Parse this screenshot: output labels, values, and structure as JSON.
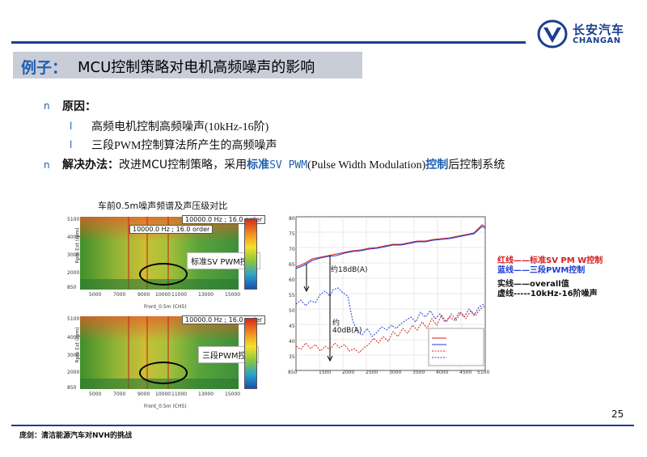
{
  "brand": {
    "cn": "长安汽车",
    "en": "CHANGAN",
    "color": "#1a3f8f"
  },
  "title": {
    "prefix": "例子：",
    "text": "MCU控制策略对电机高频噪声的影响"
  },
  "reason": {
    "label": "原因：",
    "items": [
      "高频电机控制高频噪声(10kHz-16阶)",
      "三段PWM控制算法所产生的高频噪声"
    ]
  },
  "solution": {
    "label": "解决办法：",
    "text_before": "改进MCU控制策略，采用",
    "highlight1": "标准",
    "highlight2": "SV PWM",
    "paren": "(Pulse Width Modulation)",
    "highlight3": "控制",
    "text_after": "后控制系统"
  },
  "figure_left": {
    "caption": "车前0.5m噪声频谱及声压级对比",
    "top_label": "标准SV PWM控制",
    "bottom_label": "三段PWM控制",
    "top_tags": [
      "10000.0 Hz ; 16.0 order",
      "10000.0 Hz ; 16.0 order"
    ],
    "bottom_tags": [
      "10000.0 Hz ; 16.0 order"
    ],
    "y_ticks": [
      "5100",
      "4000",
      "3000",
      "2000",
      "1000",
      "850"
    ],
    "x_ticks": [
      "5000",
      "7000",
      "9000",
      "10000",
      "11000",
      "13000",
      "15000"
    ],
    "x_label": "Front_0.5m (CH5)",
    "y_label": "Rpm Ext (rpm)",
    "cbar_ticks": [
      "70",
      "50",
      "40",
      "30",
      "20",
      "10"
    ]
  },
  "figure_right": {
    "annotation1": "约18dB(A)",
    "annotation2_l1": "约",
    "annotation2_l2": "40dB(A)",
    "legend": [
      {
        "key": "红线",
        "dash": "——",
        "text": "标准SV PM W控制",
        "color": "#d41f1f"
      },
      {
        "key": "蓝线",
        "dash": "——",
        "text": "三段PWM控制",
        "color": "#1f3fd4"
      },
      {
        "key": "实线",
        "dash": "——",
        "text": "overall值",
        "color": "#000000"
      },
      {
        "key": "虚线",
        "dash": "-----",
        "text": "10kHz-16阶噪声",
        "color": "#000000"
      }
    ],
    "x_ticks": [
      "850",
      "1500",
      "2000",
      "2500",
      "3000",
      "3500",
      "4000",
      "4500",
      "5100"
    ],
    "y_ticks": [
      "80",
      "75",
      "70",
      "65",
      "60",
      "55",
      "50",
      "45",
      "40",
      "35",
      "30"
    ]
  },
  "page_number": "25",
  "footer": "庞剑：清洁能源汽车对NVH的挑战"
}
